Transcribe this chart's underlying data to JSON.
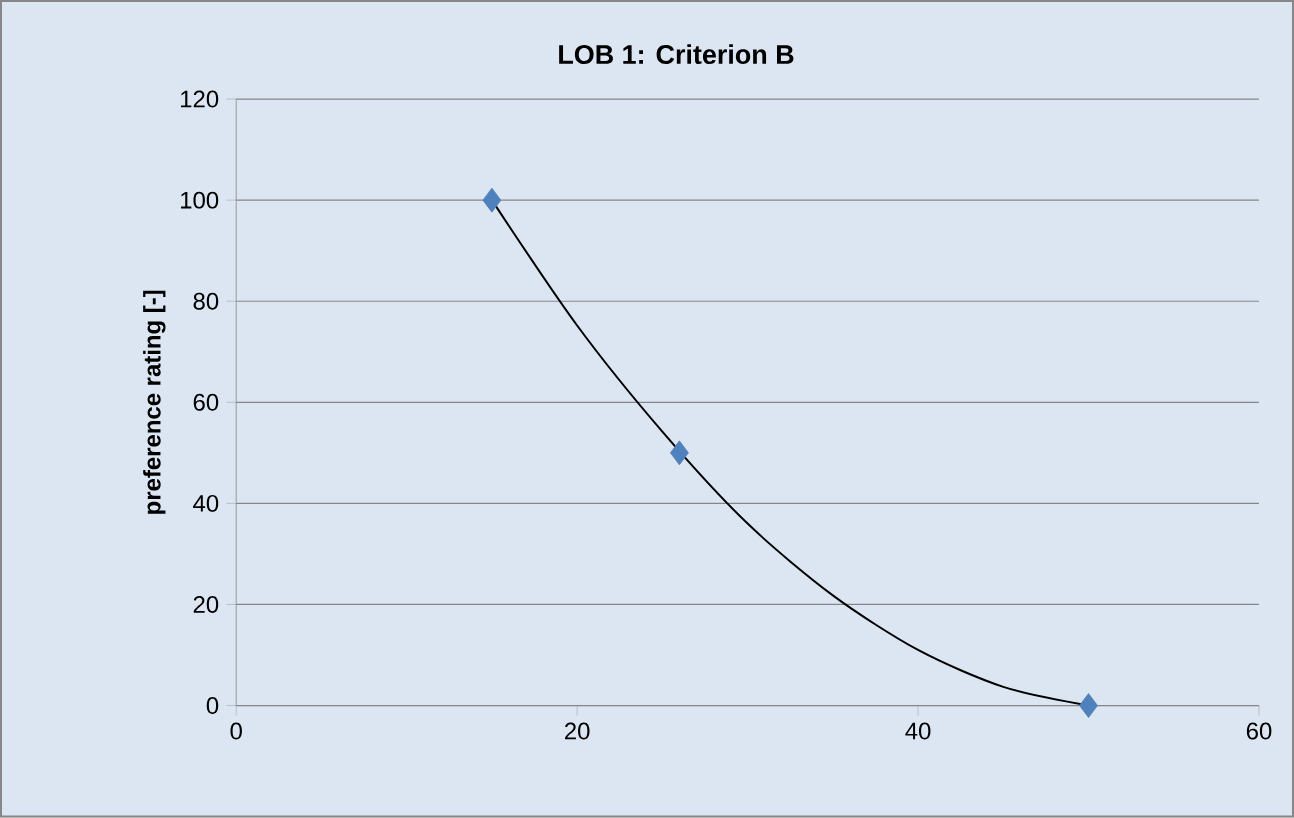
{
  "chart_data": {
    "type": "scatter",
    "title": "LOB 1: Criterion B",
    "ylabel": "preference rating [-]",
    "xlim": [
      0,
      60
    ],
    "xticks": [
      0,
      20,
      40,
      60
    ],
    "ylim": [
      0,
      120
    ],
    "yticks": [
      0,
      20,
      40,
      60,
      80,
      100,
      120
    ],
    "grid": "y",
    "series": [
      {
        "marker": "diamond",
        "color": "#4f81bd",
        "x": [
          15,
          26,
          50
        ],
        "values": [
          100,
          50,
          0
        ]
      },
      {
        "type": "line",
        "marker": "none",
        "color": "#000000",
        "x": [
          15,
          20,
          25,
          30,
          35,
          40,
          45,
          50
        ],
        "values": [
          100,
          75.2,
          54.2,
          36.0,
          21.8,
          11.0,
          3.7,
          0
        ]
      }
    ]
  }
}
